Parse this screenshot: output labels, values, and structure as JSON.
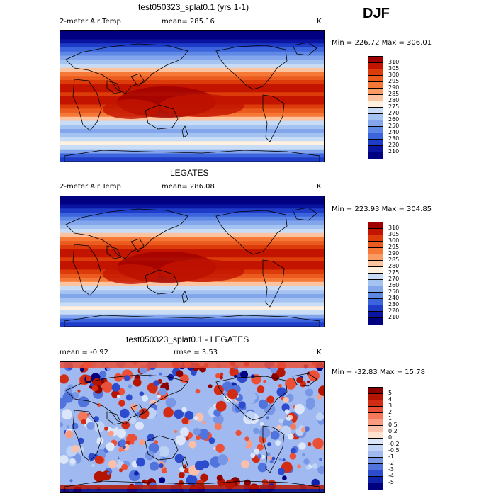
{
  "season_label": "DJF",
  "panels": [
    {
      "title": "test050323_splat0.1 (yrs 1-1)",
      "field_label": "2-meter Air Temp",
      "stat_text": "mean= 285.16",
      "units": "K",
      "minmax": "Min = 226.72 Max = 306.01",
      "levels": [
        "310",
        "305",
        "300",
        "295",
        "290",
        "285",
        "280",
        "275",
        "270",
        "260",
        "250",
        "240",
        "230",
        "220",
        "210"
      ],
      "colors": [
        "#a00000",
        "#c31400",
        "#dc3c0a",
        "#eb5a1e",
        "#f57837",
        "#fa9b64",
        "#fcc3a0",
        "#fff0e0",
        "#c8dcf5",
        "#a5c3f0",
        "#82a5eb",
        "#5f87e6",
        "#3c64dc",
        "#1e3cc8",
        "#0a14a0",
        "#000080"
      ],
      "map_style": "climatology"
    },
    {
      "title": "LEGATES",
      "field_label": "2-meter Air Temp",
      "stat_text": "mean= 286.08",
      "units": "K",
      "minmax": "Min = 223.93 Max = 304.85",
      "levels": [
        "310",
        "305",
        "300",
        "295",
        "290",
        "285",
        "280",
        "275",
        "270",
        "260",
        "250",
        "240",
        "230",
        "220",
        "210"
      ],
      "colors": [
        "#a00000",
        "#c31400",
        "#dc3c0a",
        "#eb5a1e",
        "#f57837",
        "#fa9b64",
        "#fcc3a0",
        "#fff0e0",
        "#c8dcf5",
        "#a5c3f0",
        "#82a5eb",
        "#5f87e6",
        "#3c64dc",
        "#1e3cc8",
        "#0a14a0",
        "#000080"
      ],
      "map_style": "climatology"
    },
    {
      "title": "test050323_splat0.1 - LEGATES",
      "stat_left": "mean =   -0.92",
      "stat_mid": "rmse =    3.53",
      "units": "K",
      "minmax": "Min = -32.83 Max =  15.78",
      "levels": [
        "5",
        "4",
        "3",
        "2",
        "1",
        "0.5",
        "0.2",
        "0",
        "-0.2",
        "-0.5",
        "-1",
        "-2",
        "-3",
        "-4",
        "-5"
      ],
      "colors": [
        "#8c0000",
        "#b41400",
        "#d22d14",
        "#eb5037",
        "#f5785a",
        "#fa9b82",
        "#fcbfaa",
        "#ffe1d2",
        "#dce6fa",
        "#bed2f5",
        "#a0b9f0",
        "#7896e6",
        "#5073dc",
        "#2d4bcd",
        "#0f23aa",
        "#000080"
      ],
      "map_style": "difference"
    }
  ]
}
